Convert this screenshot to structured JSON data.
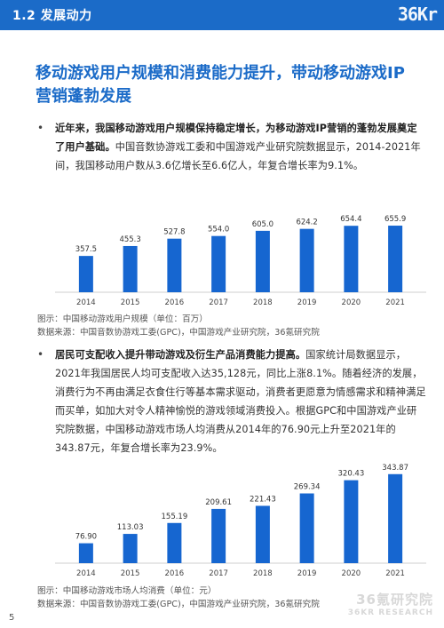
{
  "header": {
    "section": "1.2 发展动力",
    "logo": "36Kr"
  },
  "headline": "移动游戏用户规模和消费能力提升，带动移动游戏IP营销蓬勃发展",
  "paragraph1": {
    "bold": "近年来，我国移动游戏用户规模保持稳定增长，为移动游戏IP营销的蓬勃发展奠定了用户基础。",
    "text": "中国音数协游戏工委和中国游戏产业研究院数据显示，2014-2021年间，我国移动用户数从3.6亿增长至6.6亿人，年复合增长率为9.1%。"
  },
  "caption1": {
    "title": "图示：中国移动游戏用户规模（单位：百万）",
    "source": "数据来源：中国音数协游戏工委(GPC)，中国游戏产业研究院，36氪研究院"
  },
  "paragraph2": {
    "bold": "居民可支配收入提升带动游戏及衍生产品消费能力提高。",
    "text": "国家统计局数据显示，2021年我国居民人均可支配收入达35,128元，同比上涨8.1%。随着经济的发展，消费行为不再由满足衣食住行等基本需求驱动，消费者更愿意为情感需求和精神满足而买单，如加大对令人精神愉悦的游戏领域消费投入。根据GPC和中国游戏产业研究院数据，中国移动游戏市场人均消费从2014年的76.90元上升至2021年的343.87元，年复合增长率为23.9%。"
  },
  "caption2": {
    "title": "图示：中国移动游戏市场人均消费（单位：元）",
    "source": "数据来源：中国音数协游戏工委(GPC)，中国游戏产业研究院，36氪研究院"
  },
  "watermark": {
    "line1": "36氪研究院",
    "line2": "36KR RESEARCH"
  },
  "page_number": "5",
  "colors": {
    "accent": "#1B6BC8",
    "bar": "#1666D0"
  },
  "chart_data": [
    {
      "type": "bar",
      "categories": [
        "2014",
        "2015",
        "2016",
        "2017",
        "2018",
        "2019",
        "2020",
        "2021"
      ],
      "values": [
        357.5,
        455.3,
        527.8,
        554.0,
        605.0,
        624.2,
        654.4,
        655.9
      ],
      "value_labels": [
        "357.5",
        "455.3",
        "527.8",
        "554.0",
        "605.0",
        "624.2",
        "654.4",
        "655.9"
      ],
      "ylim": [
        0,
        700
      ],
      "grid": false
    },
    {
      "type": "bar",
      "categories": [
        "2014",
        "2015",
        "2016",
        "2017",
        "2018",
        "2019",
        "2020",
        "2021"
      ],
      "values": [
        76.9,
        113.03,
        155.19,
        209.61,
        221.43,
        269.34,
        320.43,
        343.87
      ],
      "value_labels": [
        "76.90",
        "113.03",
        "155.19",
        "209.61",
        "221.43",
        "269.34",
        "320.43",
        "343.87"
      ],
      "ylim": [
        0,
        350
      ],
      "grid": false
    }
  ]
}
